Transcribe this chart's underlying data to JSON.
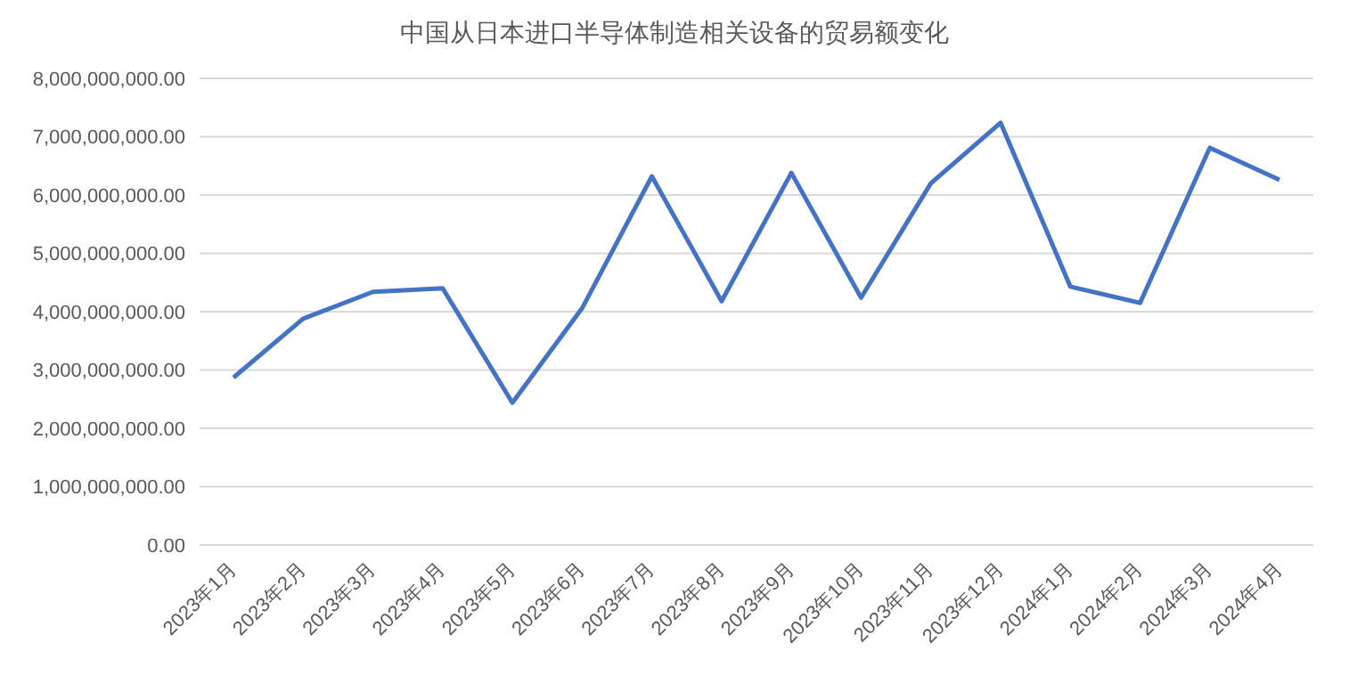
{
  "chart_data": {
    "type": "line",
    "title": "中国从日本进口半导体制造相关设备的贸易额变化",
    "categories": [
      "2023年1月",
      "2023年2月",
      "2023年3月",
      "2023年4月",
      "2023年5月",
      "2023年6月",
      "2023年7月",
      "2023年8月",
      "2023年9月",
      "2023年10月",
      "2023年11月",
      "2023年12月",
      "2024年1月",
      "2024年2月",
      "2024年3月",
      "2024年4月"
    ],
    "series": [
      {
        "color": "#4472c4",
        "values": [
          2870000000,
          3880000000,
          4340000000,
          4400000000,
          2440000000,
          4060000000,
          6320000000,
          4180000000,
          6380000000,
          4240000000,
          6200000000,
          7240000000,
          4430000000,
          4150000000,
          6810000000,
          6260000000
        ]
      }
    ],
    "ylim": [
      0,
      8000000000
    ],
    "yticks": [
      {
        "value": 0,
        "label": "0.00"
      },
      {
        "value": 1000000000,
        "label": "1,000,000,000.00"
      },
      {
        "value": 2000000000,
        "label": "2,000,000,000.00"
      },
      {
        "value": 3000000000,
        "label": "3,000,000,000.00"
      },
      {
        "value": 4000000000,
        "label": "4,000,000,000.00"
      },
      {
        "value": 5000000000,
        "label": "5,000,000,000.00"
      },
      {
        "value": 6000000000,
        "label": "6,000,000,000.00"
      },
      {
        "value": 7000000000,
        "label": "7,000,000,000.00"
      },
      {
        "value": 8000000000,
        "label": "8,000,000,000.00"
      }
    ],
    "grid": "y",
    "marker": "none",
    "line_style": "solid",
    "legend": false
  }
}
